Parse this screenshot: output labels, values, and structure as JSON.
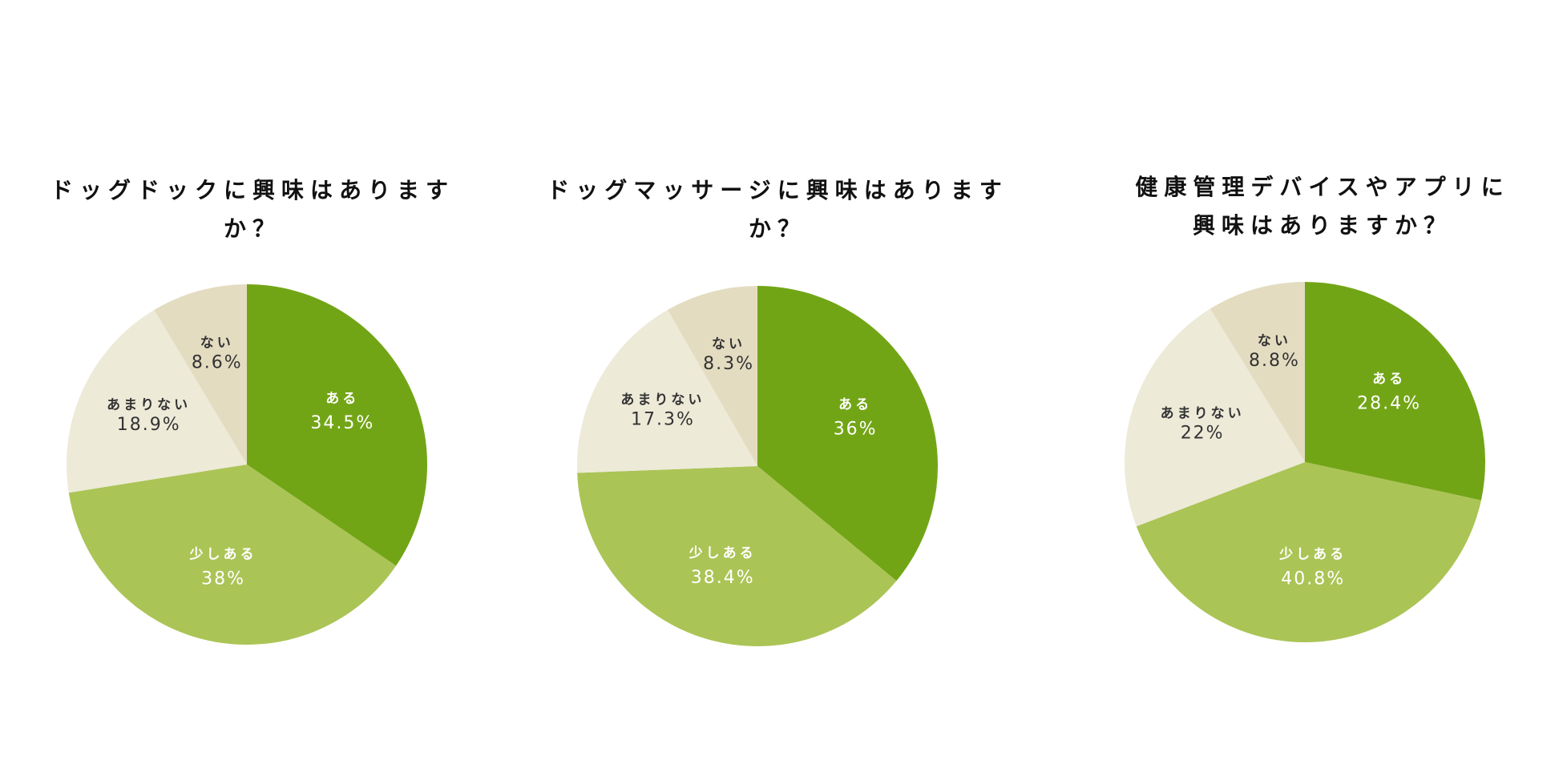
{
  "chart_data": [
    {
      "type": "pie",
      "title": "ドッグドックに興味はありますか？",
      "slices": [
        {
          "label": "ある",
          "value": 34.5,
          "display": "34.5%",
          "color": "#72a516",
          "text_color": "#ffffff"
        },
        {
          "label": "少しある",
          "value": 38,
          "display": "38%",
          "color": "#abc456",
          "text_color": "#ffffff"
        },
        {
          "label": "あまりない",
          "value": 18.9,
          "display": "18.9%",
          "color": "#edead8",
          "text_color": "#333333"
        },
        {
          "label": "ない",
          "value": 8.6,
          "display": "8.6%",
          "color": "#e3dcc1",
          "text_color": "#333333"
        }
      ]
    },
    {
      "type": "pie",
      "title": "ドッグマッサージに興味はありますか？",
      "slices": [
        {
          "label": "ある",
          "value": 36,
          "display": "36%",
          "color": "#72a516",
          "text_color": "#ffffff"
        },
        {
          "label": "少しある",
          "value": 38.4,
          "display": "38.4%",
          "color": "#abc456",
          "text_color": "#ffffff"
        },
        {
          "label": "あまりない",
          "value": 17.3,
          "display": "17.3%",
          "color": "#edead8",
          "text_color": "#333333"
        },
        {
          "label": "ない",
          "value": 8.3,
          "display": "8.3%",
          "color": "#e3dcc1",
          "text_color": "#333333"
        }
      ]
    },
    {
      "type": "pie",
      "title": "健康管理デバイスやアプリに興味はありますか？",
      "title_lines": [
        "健康管理デバイスやアプリに",
        "興味はありますか？"
      ],
      "slices": [
        {
          "label": "ある",
          "value": 28.4,
          "display": "28.4%",
          "color": "#72a516",
          "text_color": "#ffffff"
        },
        {
          "label": "少しある",
          "value": 40.8,
          "display": "40.8%",
          "color": "#abc456",
          "text_color": "#ffffff"
        },
        {
          "label": "あまりない",
          "value": 22,
          "display": "22%",
          "color": "#edead8",
          "text_color": "#333333"
        },
        {
          "label": "ない",
          "value": 8.8,
          "display": "8.8%",
          "color": "#e3dcc1",
          "text_color": "#333333"
        }
      ]
    }
  ]
}
